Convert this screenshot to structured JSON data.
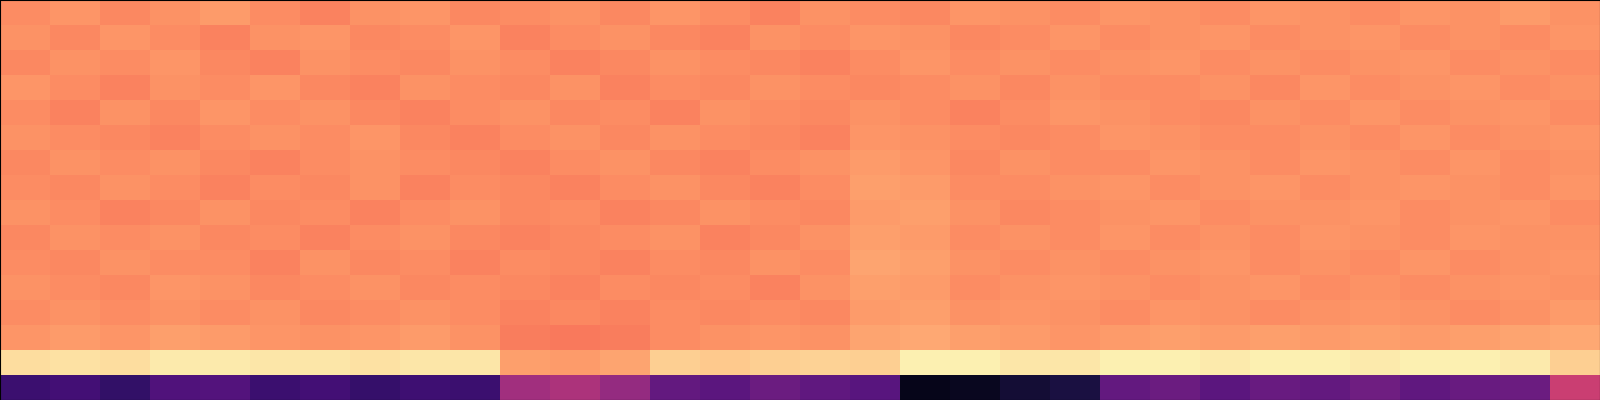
{
  "chart_data": {
    "type": "heatmap",
    "color": "magma",
    "tick_labels": false,
    "color_range": [
      0,
      1
    ],
    "cells": [
      [
        0.76,
        0.78,
        0.75,
        0.77,
        0.79,
        0.76,
        0.74,
        0.77,
        0.78,
        0.75,
        0.76,
        0.77,
        0.75,
        0.78,
        0.76,
        0.74,
        0.77,
        0.76,
        0.75,
        0.78,
        0.77,
        0.76,
        0.78,
        0.77,
        0.76,
        0.78,
        0.77,
        0.76,
        0.78,
        0.77,
        0.79,
        0.77
      ],
      [
        0.77,
        0.75,
        0.78,
        0.76,
        0.74,
        0.77,
        0.78,
        0.75,
        0.76,
        0.78,
        0.74,
        0.76,
        0.77,
        0.75,
        0.74,
        0.77,
        0.76,
        0.78,
        0.77,
        0.75,
        0.76,
        0.78,
        0.76,
        0.77,
        0.78,
        0.76,
        0.77,
        0.78,
        0.76,
        0.77,
        0.76,
        0.78
      ],
      [
        0.75,
        0.77,
        0.76,
        0.78,
        0.75,
        0.74,
        0.77,
        0.76,
        0.75,
        0.77,
        0.76,
        0.74,
        0.75,
        0.77,
        0.76,
        0.75,
        0.74,
        0.76,
        0.78,
        0.76,
        0.77,
        0.76,
        0.77,
        0.78,
        0.76,
        0.77,
        0.76,
        0.77,
        0.78,
        0.76,
        0.77,
        0.76
      ],
      [
        0.78,
        0.76,
        0.74,
        0.77,
        0.76,
        0.78,
        0.75,
        0.74,
        0.77,
        0.76,
        0.75,
        0.77,
        0.74,
        0.76,
        0.75,
        0.77,
        0.76,
        0.75,
        0.76,
        0.77,
        0.75,
        0.77,
        0.76,
        0.76,
        0.77,
        0.75,
        0.78,
        0.76,
        0.77,
        0.78,
        0.76,
        0.77
      ],
      [
        0.76,
        0.74,
        0.77,
        0.75,
        0.78,
        0.76,
        0.77,
        0.75,
        0.74,
        0.76,
        0.77,
        0.75,
        0.76,
        0.74,
        0.77,
        0.76,
        0.75,
        0.77,
        0.76,
        0.74,
        0.76,
        0.78,
        0.77,
        0.76,
        0.75,
        0.77,
        0.76,
        0.78,
        0.76,
        0.77,
        0.78,
        0.76
      ],
      [
        0.77,
        0.76,
        0.75,
        0.74,
        0.76,
        0.77,
        0.76,
        0.78,
        0.75,
        0.74,
        0.76,
        0.77,
        0.75,
        0.77,
        0.76,
        0.75,
        0.74,
        0.78,
        0.77,
        0.76,
        0.75,
        0.76,
        0.78,
        0.77,
        0.76,
        0.76,
        0.77,
        0.76,
        0.78,
        0.76,
        0.77,
        0.78
      ],
      [
        0.75,
        0.77,
        0.76,
        0.77,
        0.75,
        0.74,
        0.76,
        0.77,
        0.76,
        0.75,
        0.74,
        0.76,
        0.77,
        0.75,
        0.74,
        0.76,
        0.77,
        0.79,
        0.78,
        0.75,
        0.77,
        0.76,
        0.76,
        0.78,
        0.77,
        0.76,
        0.78,
        0.77,
        0.76,
        0.78,
        0.76,
        0.77
      ],
      [
        0.76,
        0.75,
        0.77,
        0.76,
        0.74,
        0.76,
        0.75,
        0.77,
        0.74,
        0.76,
        0.75,
        0.74,
        0.76,
        0.77,
        0.75,
        0.74,
        0.76,
        0.8,
        0.79,
        0.76,
        0.76,
        0.77,
        0.78,
        0.76,
        0.77,
        0.78,
        0.76,
        0.77,
        0.78,
        0.77,
        0.76,
        0.78
      ],
      [
        0.77,
        0.76,
        0.74,
        0.75,
        0.77,
        0.75,
        0.76,
        0.74,
        0.76,
        0.77,
        0.75,
        0.76,
        0.74,
        0.75,
        0.77,
        0.76,
        0.75,
        0.79,
        0.8,
        0.77,
        0.75,
        0.76,
        0.77,
        0.78,
        0.76,
        0.77,
        0.77,
        0.78,
        0.76,
        0.77,
        0.78,
        0.76
      ],
      [
        0.75,
        0.77,
        0.76,
        0.77,
        0.75,
        0.76,
        0.74,
        0.76,
        0.77,
        0.75,
        0.74,
        0.75,
        0.76,
        0.77,
        0.74,
        0.75,
        0.77,
        0.8,
        0.79,
        0.76,
        0.77,
        0.76,
        0.78,
        0.76,
        0.77,
        0.76,
        0.78,
        0.77,
        0.76,
        0.78,
        0.77,
        0.77
      ],
      [
        0.76,
        0.75,
        0.77,
        0.76,
        0.76,
        0.74,
        0.77,
        0.75,
        0.76,
        0.74,
        0.76,
        0.75,
        0.74,
        0.76,
        0.75,
        0.77,
        0.76,
        0.81,
        0.8,
        0.77,
        0.76,
        0.77,
        0.76,
        0.77,
        0.78,
        0.76,
        0.77,
        0.76,
        0.78,
        0.76,
        0.77,
        0.78
      ],
      [
        0.77,
        0.76,
        0.75,
        0.78,
        0.77,
        0.75,
        0.76,
        0.77,
        0.75,
        0.76,
        0.75,
        0.74,
        0.76,
        0.75,
        0.76,
        0.74,
        0.77,
        0.8,
        0.79,
        0.76,
        0.77,
        0.78,
        0.77,
        0.76,
        0.77,
        0.78,
        0.76,
        0.77,
        0.76,
        0.77,
        0.78,
        0.77
      ],
      [
        0.76,
        0.77,
        0.76,
        0.77,
        0.76,
        0.77,
        0.75,
        0.76,
        0.77,
        0.76,
        0.74,
        0.75,
        0.74,
        0.76,
        0.75,
        0.76,
        0.75,
        0.79,
        0.8,
        0.77,
        0.78,
        0.77,
        0.76,
        0.78,
        0.77,
        0.76,
        0.77,
        0.78,
        0.77,
        0.76,
        0.77,
        0.79
      ],
      [
        0.78,
        0.79,
        0.78,
        0.8,
        0.79,
        0.78,
        0.77,
        0.78,
        0.79,
        0.77,
        0.73,
        0.72,
        0.73,
        0.76,
        0.77,
        0.78,
        0.77,
        0.81,
        0.82,
        0.8,
        0.79,
        0.78,
        0.79,
        0.8,
        0.79,
        0.8,
        0.79,
        0.8,
        0.79,
        0.8,
        0.81,
        0.82
      ],
      [
        0.93,
        0.94,
        0.93,
        0.96,
        0.96,
        0.95,
        0.95,
        0.94,
        0.95,
        0.95,
        0.8,
        0.79,
        0.81,
        0.9,
        0.89,
        0.9,
        0.91,
        0.9,
        0.97,
        0.97,
        0.95,
        0.95,
        0.97,
        0.97,
        0.96,
        0.97,
        0.97,
        0.96,
        0.97,
        0.97,
        0.96,
        0.9
      ],
      [
        0.2,
        0.22,
        0.18,
        0.25,
        0.26,
        0.2,
        0.22,
        0.19,
        0.21,
        0.2,
        0.45,
        0.48,
        0.42,
        0.3,
        0.28,
        0.32,
        0.29,
        0.27,
        0.05,
        0.06,
        0.1,
        0.12,
        0.3,
        0.32,
        0.28,
        0.31,
        0.3,
        0.33,
        0.29,
        0.31,
        0.32,
        0.55
      ]
    ]
  }
}
